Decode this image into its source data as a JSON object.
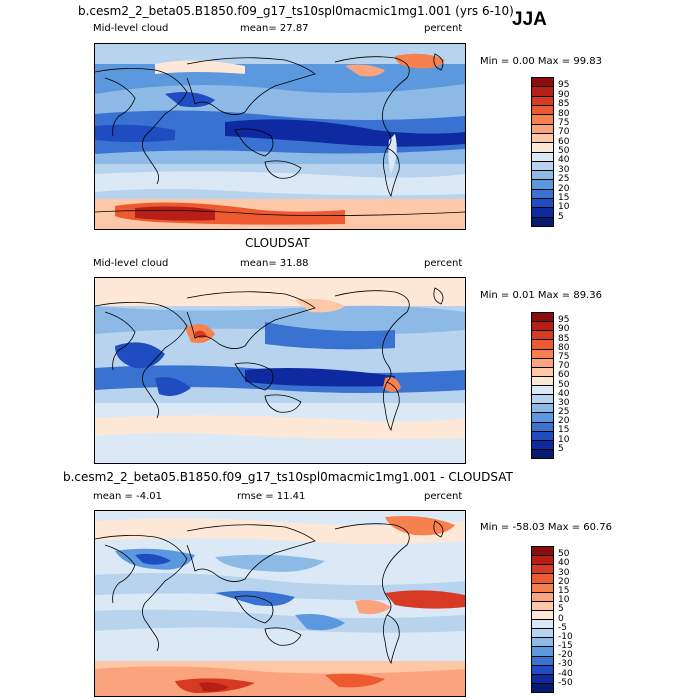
{
  "season": "JJA",
  "panels": [
    {
      "title": "b.cesm2_2_beta05.B1850.f09_g17_ts10spl0macmic1mg1.001 (yrs 6-10)",
      "left_label": "Mid-level cloud",
      "mean_label": "mean=  27.87",
      "unit": "percent",
      "minmax": "Min =   0.00 Max =  99.83",
      "levels": [
        "95",
        "90",
        "85",
        "80",
        "75",
        "70",
        "60",
        "50",
        "40",
        "30",
        "25",
        "20",
        "15",
        "10",
        "5"
      ],
      "colors": [
        "#8c0d0d",
        "#b61e16",
        "#d73a22",
        "#ee5a30",
        "#f7804f",
        "#fba37c",
        "#fdc8a8",
        "#fde7d6",
        "#dbe9f6",
        "#b8d3ee",
        "#8db9e6",
        "#5c98dd",
        "#3a72d1",
        "#1f4cc1",
        "#0f2aa0",
        "#061a6e"
      ]
    },
    {
      "title": "CLOUDSAT",
      "left_label": "Mid-level cloud",
      "mean_label": "mean=  31.88",
      "unit": "percent",
      "minmax": "Min =   0.01 Max =  89.36",
      "levels": [
        "95",
        "90",
        "85",
        "80",
        "75",
        "70",
        "60",
        "50",
        "40",
        "30",
        "25",
        "20",
        "15",
        "10",
        "5"
      ],
      "colors": [
        "#8c0d0d",
        "#b61e16",
        "#d73a22",
        "#ee5a30",
        "#f7804f",
        "#fba37c",
        "#fdc8a8",
        "#fde7d6",
        "#dbe9f6",
        "#b8d3ee",
        "#8db9e6",
        "#5c98dd",
        "#3a72d1",
        "#1f4cc1",
        "#0f2aa0",
        "#061a6e"
      ]
    },
    {
      "title": "b.cesm2_2_beta05.B1850.f09_g17_ts10spl0macmic1mg1.001 - CLOUDSAT",
      "mean_label": "mean =   -4.01",
      "rmse_label": "rmse =   11.41",
      "unit": "percent",
      "minmax": "Min = -58.03 Max =  60.76",
      "levels": [
        "50",
        "40",
        "30",
        "20",
        "15",
        "10",
        "5",
        "0",
        "-5",
        "-10",
        "-15",
        "-20",
        "-30",
        "-40",
        "-50"
      ],
      "colors": [
        "#8c0d0d",
        "#b61e16",
        "#d73a22",
        "#ee5a30",
        "#f7804f",
        "#fba37c",
        "#fdc8a8",
        "#fde7d6",
        "#dbe9f6",
        "#b8d3ee",
        "#8db9e6",
        "#5c98dd",
        "#3a72d1",
        "#1f4cc1",
        "#0f2aa0",
        "#061a6e"
      ]
    }
  ]
}
